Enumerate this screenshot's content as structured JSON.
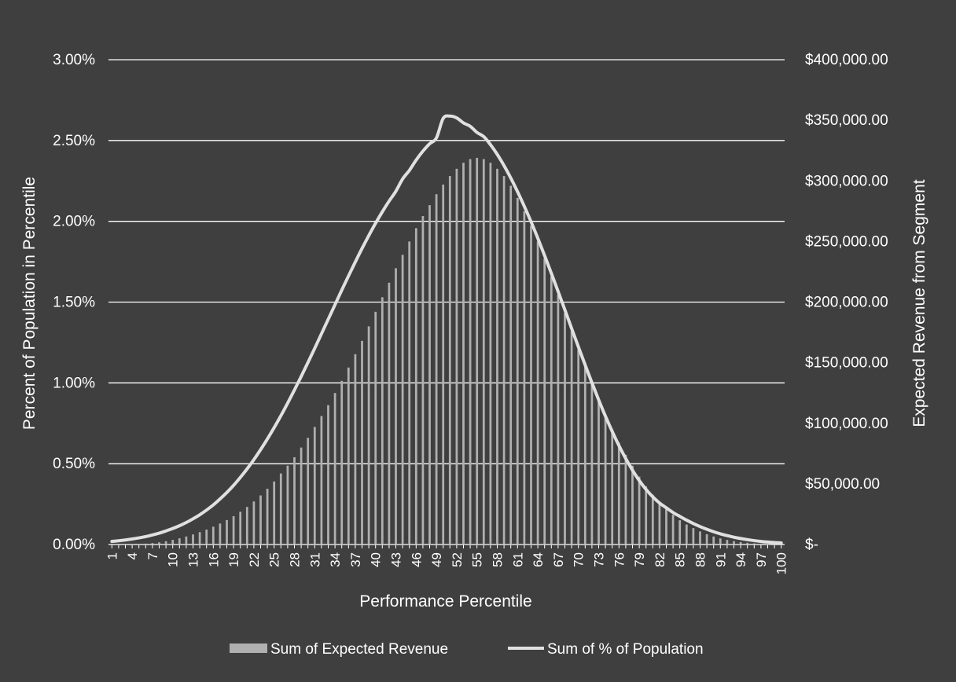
{
  "chart_data": {
    "type": "bar",
    "combo": "bar + line (dual axis)",
    "title": "",
    "xlabel": "Performance Percentile",
    "ylabel_left": "Percent of Population in Percentile",
    "ylabel_right": "Expected Revenue from Segment",
    "y_left_range": [
      0,
      3.0
    ],
    "y_right_range": [
      0,
      400000
    ],
    "y_left_ticks": [
      "0.00%",
      "0.50%",
      "1.00%",
      "1.50%",
      "2.00%",
      "2.50%",
      "3.00%"
    ],
    "y_right_ticks": [
      "$-",
      "$50,000.00",
      "$100,000.00",
      "$150,000.00",
      "$200,000.00",
      "$250,000.00",
      "$300,000.00",
      "$350,000.00",
      "$400,000.00"
    ],
    "x_tick_labels": [
      "1",
      "4",
      "7",
      "10",
      "13",
      "16",
      "19",
      "22",
      "25",
      "28",
      "31",
      "34",
      "37",
      "40",
      "43",
      "46",
      "49",
      "52",
      "55",
      "58",
      "61",
      "64",
      "67",
      "70",
      "73",
      "76",
      "79",
      "82",
      "85",
      "88",
      "91",
      "94",
      "97",
      "100"
    ],
    "grid": "horizontal",
    "legend_position": "bottom",
    "bar_series": {
      "name": "Sum of Expected Revenue",
      "axis": "right",
      "color": "#b0b0b0",
      "values": [
        25,
        60,
        130,
        260,
        450,
        760,
        1200,
        1800,
        2700,
        3800,
        5100,
        6600,
        8300,
        10200,
        12300,
        14700,
        17300,
        20200,
        23400,
        27000,
        31000,
        35500,
        40500,
        46000,
        52000,
        58600,
        65000,
        72000,
        80000,
        88000,
        97000,
        106000,
        115000,
        125000,
        135000,
        146000,
        157000,
        168000,
        180000,
        192000,
        204000,
        216000,
        228000,
        239000,
        250000,
        261000,
        271000,
        280000,
        289000,
        297000,
        304000,
        310000,
        315000,
        318000,
        319000,
        318000,
        315000,
        310000,
        304000,
        296000,
        286000,
        275000,
        263000,
        250000,
        236000,
        221000,
        206000,
        191000,
        176000,
        161000,
        147000,
        133000,
        120000,
        107000,
        95000,
        84000,
        74000,
        65000,
        56000,
        48000,
        41000,
        35000,
        29500,
        24500,
        20000,
        16500,
        13500,
        10800,
        8500,
        6600,
        5000,
        3800,
        2800,
        2000,
        1400,
        950,
        620,
        380,
        210,
        100
      ]
    },
    "line_series": {
      "name": "Sum of % of Population",
      "axis": "left",
      "color": "#e0e0e0",
      "values": [
        0.019,
        0.023,
        0.028,
        0.034,
        0.041,
        0.049,
        0.059,
        0.07,
        0.084,
        0.099,
        0.116,
        0.136,
        0.159,
        0.184,
        0.213,
        0.245,
        0.282,
        0.322,
        0.366,
        0.415,
        0.468,
        0.525,
        0.587,
        0.653,
        0.723,
        0.797,
        0.875,
        0.956,
        1.04,
        1.126,
        1.214,
        1.304,
        1.394,
        1.484,
        1.574,
        1.662,
        1.748,
        1.832,
        1.912,
        1.988,
        2.059,
        2.125,
        2.186,
        2.262,
        2.315,
        2.379,
        2.434,
        2.48,
        2.516,
        2.637,
        2.651,
        2.64,
        2.609,
        2.588,
        2.55,
        2.524,
        2.474,
        2.414,
        2.345,
        2.268,
        2.183,
        2.093,
        1.997,
        1.895,
        1.788,
        1.678,
        1.566,
        1.452,
        1.337,
        1.223,
        1.111,
        1.001,
        0.895,
        0.794,
        0.7,
        0.612,
        0.532,
        0.46,
        0.396,
        0.341,
        0.295,
        0.257,
        0.227,
        0.198,
        0.174,
        0.151,
        0.13,
        0.111,
        0.094,
        0.079,
        0.066,
        0.055,
        0.045,
        0.037,
        0.03,
        0.024,
        0.019,
        0.015,
        0.012,
        0.01
      ]
    }
  }
}
